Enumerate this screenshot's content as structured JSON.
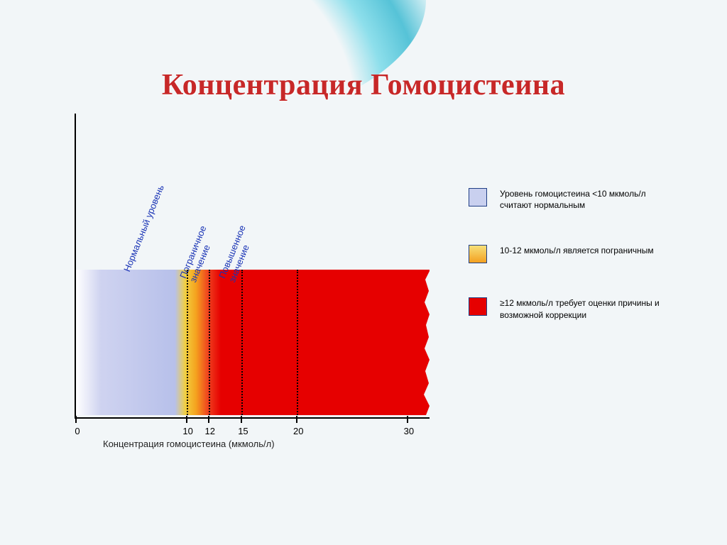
{
  "title": "Концентрация Гомоцистеина",
  "chart": {
    "type": "bar",
    "xlabel": "Концентрация гомоцистеина (мкмоль/л)",
    "xmin": 0,
    "xmax": 32,
    "ticks": [
      0,
      10,
      12,
      15,
      20,
      30
    ],
    "guides": [
      10,
      12,
      15,
      20
    ],
    "gradient_stops": [
      {
        "at": 0,
        "color": "#ffffff"
      },
      {
        "at": 0.07,
        "color": "#cfd3f0"
      },
      {
        "at": 0.28,
        "color": "#b7c0ea"
      },
      {
        "at": 0.31,
        "color": "#f2cf3e"
      },
      {
        "at": 0.34,
        "color": "#f5a11e"
      },
      {
        "at": 0.375,
        "color": "#ef3e1e"
      },
      {
        "at": 0.41,
        "color": "#e60000"
      },
      {
        "at": 1.0,
        "color": "#e60000"
      }
    ],
    "region_labels": [
      {
        "text": "Нормальный уровень",
        "x": 5
      },
      {
        "text": "Пограничное\nзначение",
        "x": 11
      },
      {
        "text": "Повышенное\nзначение",
        "x": 14.5
      }
    ]
  },
  "legend": [
    {
      "swatch": "#c9d0ef",
      "text": "Уровень гомоцистеина <10 мкмоль/л считают нормальным"
    },
    {
      "swatch_gradient": [
        "#f6e07a",
        "#f4a020"
      ],
      "text": "10-12 мкмоль/л является пограничным"
    },
    {
      "swatch": "#e60000",
      "text": "≥12 мкмоль/л требует оценки причины и возможной коррекции"
    }
  ],
  "colors": {
    "title": "#c72828",
    "region_label": "#1933b5",
    "background": "#f2f6f8",
    "axis": "#000000"
  },
  "fonts": {
    "title_family": "Georgia",
    "title_size_pt": 32,
    "label_size_pt": 10
  }
}
